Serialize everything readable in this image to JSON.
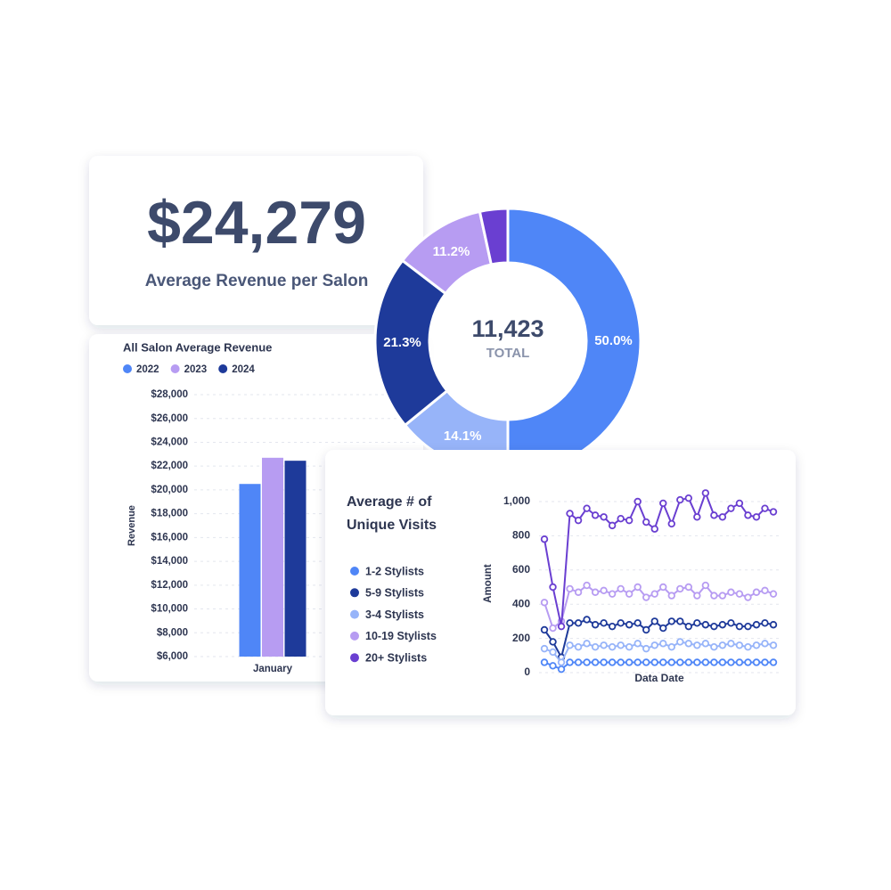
{
  "kpi": {
    "value": "$24,279",
    "label": "Average Revenue per Salon"
  },
  "chart_data": [
    {
      "type": "bar",
      "title": "All Salon Average Revenue",
      "y_label": "Revenue",
      "categories": [
        "January"
      ],
      "series": [
        {
          "name": "2022",
          "color": "#4f86f7",
          "values": [
            20500
          ]
        },
        {
          "name": "2023",
          "color": "#b79cf2",
          "values": [
            22700
          ]
        },
        {
          "name": "2024",
          "color": "#1e3a9a",
          "values": [
            22450
          ]
        }
      ],
      "ylim": [
        6000,
        28000
      ],
      "yticks": [
        {
          "value": 6000,
          "label": "$6,000"
        },
        {
          "value": 8000,
          "label": "$8,000"
        },
        {
          "value": 10000,
          "label": "$10,000"
        },
        {
          "value": 12000,
          "label": "$12,000"
        },
        {
          "value": 14000,
          "label": "$14,000"
        },
        {
          "value": 16000,
          "label": "$16,000"
        },
        {
          "value": 18000,
          "label": "$18,000"
        },
        {
          "value": 20000,
          "label": "$20,000"
        },
        {
          "value": 22000,
          "label": "$22,000"
        },
        {
          "value": 24000,
          "label": "$24,000"
        },
        {
          "value": 26000,
          "label": "$26,000"
        },
        {
          "value": 28000,
          "label": "$28,000"
        }
      ],
      "grid": true
    },
    {
      "type": "pie",
      "center_value": "11,423",
      "center_label": "TOTAL",
      "values": [
        50.0,
        14.1,
        21.3,
        11.2,
        3.4
      ],
      "value_labels": [
        "50.0%",
        "14.1%",
        "21.3%",
        "11.2%",
        null
      ],
      "colors": [
        "#4f86f7",
        "#97b4f9",
        "#1e3a9a",
        "#b79cf2",
        "#6a3fd1"
      ]
    },
    {
      "type": "line",
      "title": "Average # of Unique Visits",
      "x_label": "Data Date",
      "y_label": "Amount",
      "categories": [
        null,
        null,
        null,
        null,
        null,
        null,
        null,
        null,
        null,
        null,
        null,
        null,
        null,
        null,
        null,
        null,
        null,
        null,
        null,
        null,
        null,
        null,
        null,
        null,
        null,
        null,
        null,
        null
      ],
      "series": [
        {
          "name": "1-2 Stylists",
          "color": "#4f86f7",
          "values": [
            60,
            40,
            20,
            60,
            60,
            60,
            60,
            60,
            60,
            60,
            60,
            60,
            60,
            60,
            60,
            60,
            60,
            60,
            60,
            60,
            60,
            60,
            60,
            60,
            60,
            60,
            60,
            60
          ]
        },
        {
          "name": "5-9 Stylists",
          "color": "#1e3a9a",
          "values": [
            250,
            180,
            90,
            290,
            290,
            310,
            280,
            290,
            270,
            290,
            280,
            290,
            250,
            300,
            260,
            300,
            300,
            270,
            290,
            280,
            270,
            280,
            290,
            270,
            270,
            280,
            290,
            280
          ]
        },
        {
          "name": "3-4 Stylists",
          "color": "#97b4f9",
          "values": [
            140,
            120,
            60,
            160,
            150,
            170,
            150,
            160,
            150,
            160,
            150,
            170,
            140,
            160,
            170,
            150,
            180,
            170,
            160,
            170,
            150,
            160,
            170,
            160,
            150,
            160,
            170,
            160
          ]
        },
        {
          "name": "10-19 Stylists",
          "color": "#b79cf2",
          "values": [
            410,
            260,
            300,
            490,
            470,
            510,
            470,
            480,
            460,
            490,
            460,
            500,
            440,
            460,
            500,
            450,
            490,
            500,
            450,
            510,
            450,
            450,
            470,
            460,
            440,
            470,
            480,
            460
          ]
        },
        {
          "name": "20+ Stylists",
          "color": "#6a3fd1",
          "values": [
            780,
            500,
            270,
            930,
            890,
            960,
            920,
            910,
            860,
            900,
            890,
            1000,
            880,
            840,
            990,
            870,
            1010,
            1020,
            910,
            1050,
            920,
            910,
            960,
            990,
            920,
            910,
            960,
            940
          ]
        }
      ],
      "ylim": [
        0,
        1000
      ],
      "yticks": [
        0,
        200,
        400,
        600,
        800,
        {
          "value": 1000,
          "label": "1,000"
        }
      ],
      "grid": true
    }
  ]
}
